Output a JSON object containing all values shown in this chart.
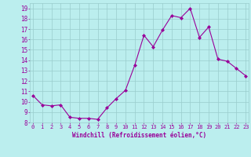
{
  "x": [
    0,
    1,
    2,
    3,
    4,
    5,
    6,
    7,
    8,
    9,
    10,
    11,
    12,
    13,
    14,
    15,
    16,
    17,
    18,
    19,
    20,
    21,
    22,
    23
  ],
  "y": [
    10.6,
    9.7,
    9.6,
    9.7,
    8.5,
    8.4,
    8.4,
    8.3,
    9.4,
    10.3,
    11.1,
    13.5,
    16.4,
    15.3,
    16.9,
    18.3,
    18.1,
    19.0,
    16.2,
    17.2,
    14.1,
    13.9,
    13.2,
    12.5
  ],
  "line_color": "#990099",
  "marker": "D",
  "marker_size": 2,
  "bg_color": "#bbeeee",
  "grid_color": "#99cccc",
  "xlabel": "Windchill (Refroidissement éolien,°C)",
  "xlabel_color": "#990099",
  "tick_color": "#990099",
  "ylim": [
    8,
    19.5
  ],
  "yticks": [
    8,
    9,
    10,
    11,
    12,
    13,
    14,
    15,
    16,
    17,
    18,
    19
  ],
  "xticks": [
    0,
    1,
    2,
    3,
    4,
    5,
    6,
    7,
    8,
    9,
    10,
    11,
    12,
    13,
    14,
    15,
    16,
    17,
    18,
    19,
    20,
    21,
    22,
    23
  ],
  "xlim": [
    -0.3,
    23.3
  ]
}
